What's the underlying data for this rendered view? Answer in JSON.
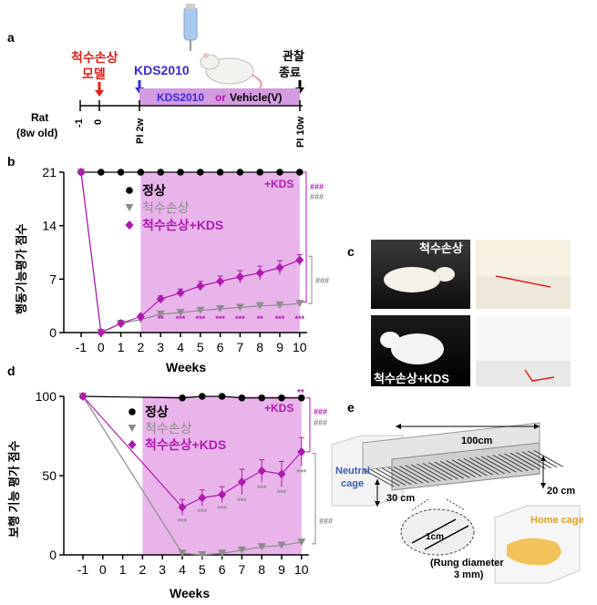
{
  "colors": {
    "normal": "#000000",
    "sci": "#8c8c8c",
    "kds": "#b01ab0",
    "shade": "#e8b4ea",
    "bar": "#d49be0",
    "red": "#e0201a",
    "blue": "#3b2ad8"
  },
  "panel_a": {
    "letter": "a",
    "rat_label": "Rat",
    "rat_age": "(8w old)",
    "injury_l1": "척수손상",
    "injury_l2": "모델",
    "kds_start": "KDS2010",
    "bar_text_kds": "KDS2010",
    "bar_text_or": "or",
    "bar_text_vehicle": "Vehicle(V)",
    "end_l1": "관찰",
    "end_l2": "종료",
    "tick_m1": "-1",
    "tick_0": "0",
    "tick_pi2": "PI 2w",
    "tick_pi10": "PI 10w"
  },
  "panel_b": {
    "letter": "b",
    "ylabel": "행동기능평가 점수",
    "xlabel": "Weeks",
    "shade_label": "+KDS",
    "sig_top_kds": "###",
    "sig_top_sci": "###",
    "sig_bottom": "###"
  },
  "panel_c": {
    "letter": "c",
    "label_top": "척수손상",
    "label_bottom": "척수손상+KDS"
  },
  "panel_d": {
    "letter": "d",
    "ylabel": "보행 기능 평가 점수",
    "xlabel": "Weeks",
    "shade_label": "+KDS",
    "sig_top_kds": "###",
    "sig_top_sci": "###",
    "sig_bottom": "###",
    "sig_star": "**"
  },
  "panel_e": {
    "letter": "e",
    "length": "100cm",
    "height": "20 cm",
    "width": "30 cm",
    "neutral_l1": "Neutral",
    "neutral_l2": "cage",
    "home": "Home cage",
    "spacing": "1cm",
    "rung_l1": "(Rung  diameter",
    "rung_l2": "3 mm)"
  },
  "chart_data": [
    {
      "type": "line",
      "panel": "b",
      "xlabel": "Weeks",
      "ylabel": "행동기능평가 점수",
      "x": [
        -1,
        0,
        1,
        2,
        3,
        4,
        5,
        6,
        7,
        8,
        9,
        10
      ],
      "ylim": [
        0,
        21
      ],
      "yticks": [
        0,
        7,
        14,
        21
      ],
      "legend_position": "top-center",
      "series": [
        {
          "name": "정상",
          "values": [
            21,
            21,
            21,
            21,
            21,
            21,
            21,
            21,
            21,
            21,
            21,
            21
          ],
          "err": [
            0,
            0,
            0,
            0,
            0,
            0,
            0,
            0,
            0,
            0,
            0,
            0
          ],
          "marker": "circle"
        },
        {
          "name": "척수손상",
          "values": [
            21,
            0,
            1.2,
            1.7,
            2.4,
            2.6,
            2.9,
            3.1,
            3.3,
            3.5,
            3.6,
            3.8
          ],
          "err": [
            0,
            0,
            0.2,
            0.3,
            0.3,
            0.3,
            0.3,
            0.3,
            0.3,
            0.4,
            0.4,
            0.4
          ],
          "marker": "triangle"
        },
        {
          "name": "척수손상+KDS",
          "values": [
            21,
            0,
            1.2,
            2.1,
            4.4,
            5.2,
            6.1,
            6.7,
            7.3,
            7.8,
            8.5,
            9.5
          ],
          "err": [
            0,
            0,
            0.2,
            0.3,
            0.4,
            0.5,
            0.6,
            0.7,
            0.8,
            0.9,
            0.9,
            0.7
          ],
          "marker": "diamond"
        }
      ],
      "annotations": [
        {
          "x": 3,
          "text": "**"
        },
        {
          "x": 4,
          "text": "***"
        },
        {
          "x": 5,
          "text": "***"
        },
        {
          "x": 6,
          "text": "***"
        },
        {
          "x": 7,
          "text": "***"
        },
        {
          "x": 8,
          "text": "**"
        },
        {
          "x": 9,
          "text": "***"
        },
        {
          "x": 10,
          "text": "***"
        }
      ]
    },
    {
      "type": "line",
      "panel": "d",
      "xlabel": "Weeks",
      "ylabel": "보행 기능 평가 점수",
      "x": [
        -1,
        0,
        1,
        2,
        3,
        4,
        5,
        6,
        7,
        8,
        9,
        10
      ],
      "ylim": [
        0,
        100
      ],
      "yticks": [
        0,
        50,
        100
      ],
      "legend_position": "top-center",
      "series": [
        {
          "name": "정상",
          "x": [
            -1,
            4,
            5,
            6,
            7,
            8,
            9,
            10
          ],
          "values": [
            100,
            99,
            100,
            100,
            99,
            99,
            99,
            99
          ],
          "err": [
            0,
            1,
            0,
            0,
            1,
            1,
            1,
            1
          ],
          "marker": "circle"
        },
        {
          "name": "척수손상",
          "x": [
            -1,
            4,
            5,
            6,
            7,
            8,
            9,
            10
          ],
          "values": [
            100,
            1,
            0,
            1,
            3,
            5,
            6,
            8
          ],
          "err": [
            0,
            1,
            1,
            1,
            1,
            2,
            2,
            2
          ],
          "marker": "triangle"
        },
        {
          "name": "척수손상+KDS",
          "x": [
            -1,
            4,
            5,
            6,
            7,
            8,
            9,
            10
          ],
          "values": [
            100,
            30,
            36,
            38,
            46,
            53,
            51,
            65
          ],
          "err": [
            0,
            5,
            5,
            5,
            8,
            7,
            8,
            9
          ],
          "marker": "diamond"
        }
      ],
      "annotations": [
        {
          "x": 4,
          "text": "***"
        },
        {
          "x": 5,
          "text": "***"
        },
        {
          "x": 6,
          "text": "***"
        },
        {
          "x": 7,
          "text": "***"
        },
        {
          "x": 8,
          "text": "***"
        },
        {
          "x": 9,
          "text": "***"
        },
        {
          "x": 10,
          "text": "***"
        }
      ]
    }
  ]
}
